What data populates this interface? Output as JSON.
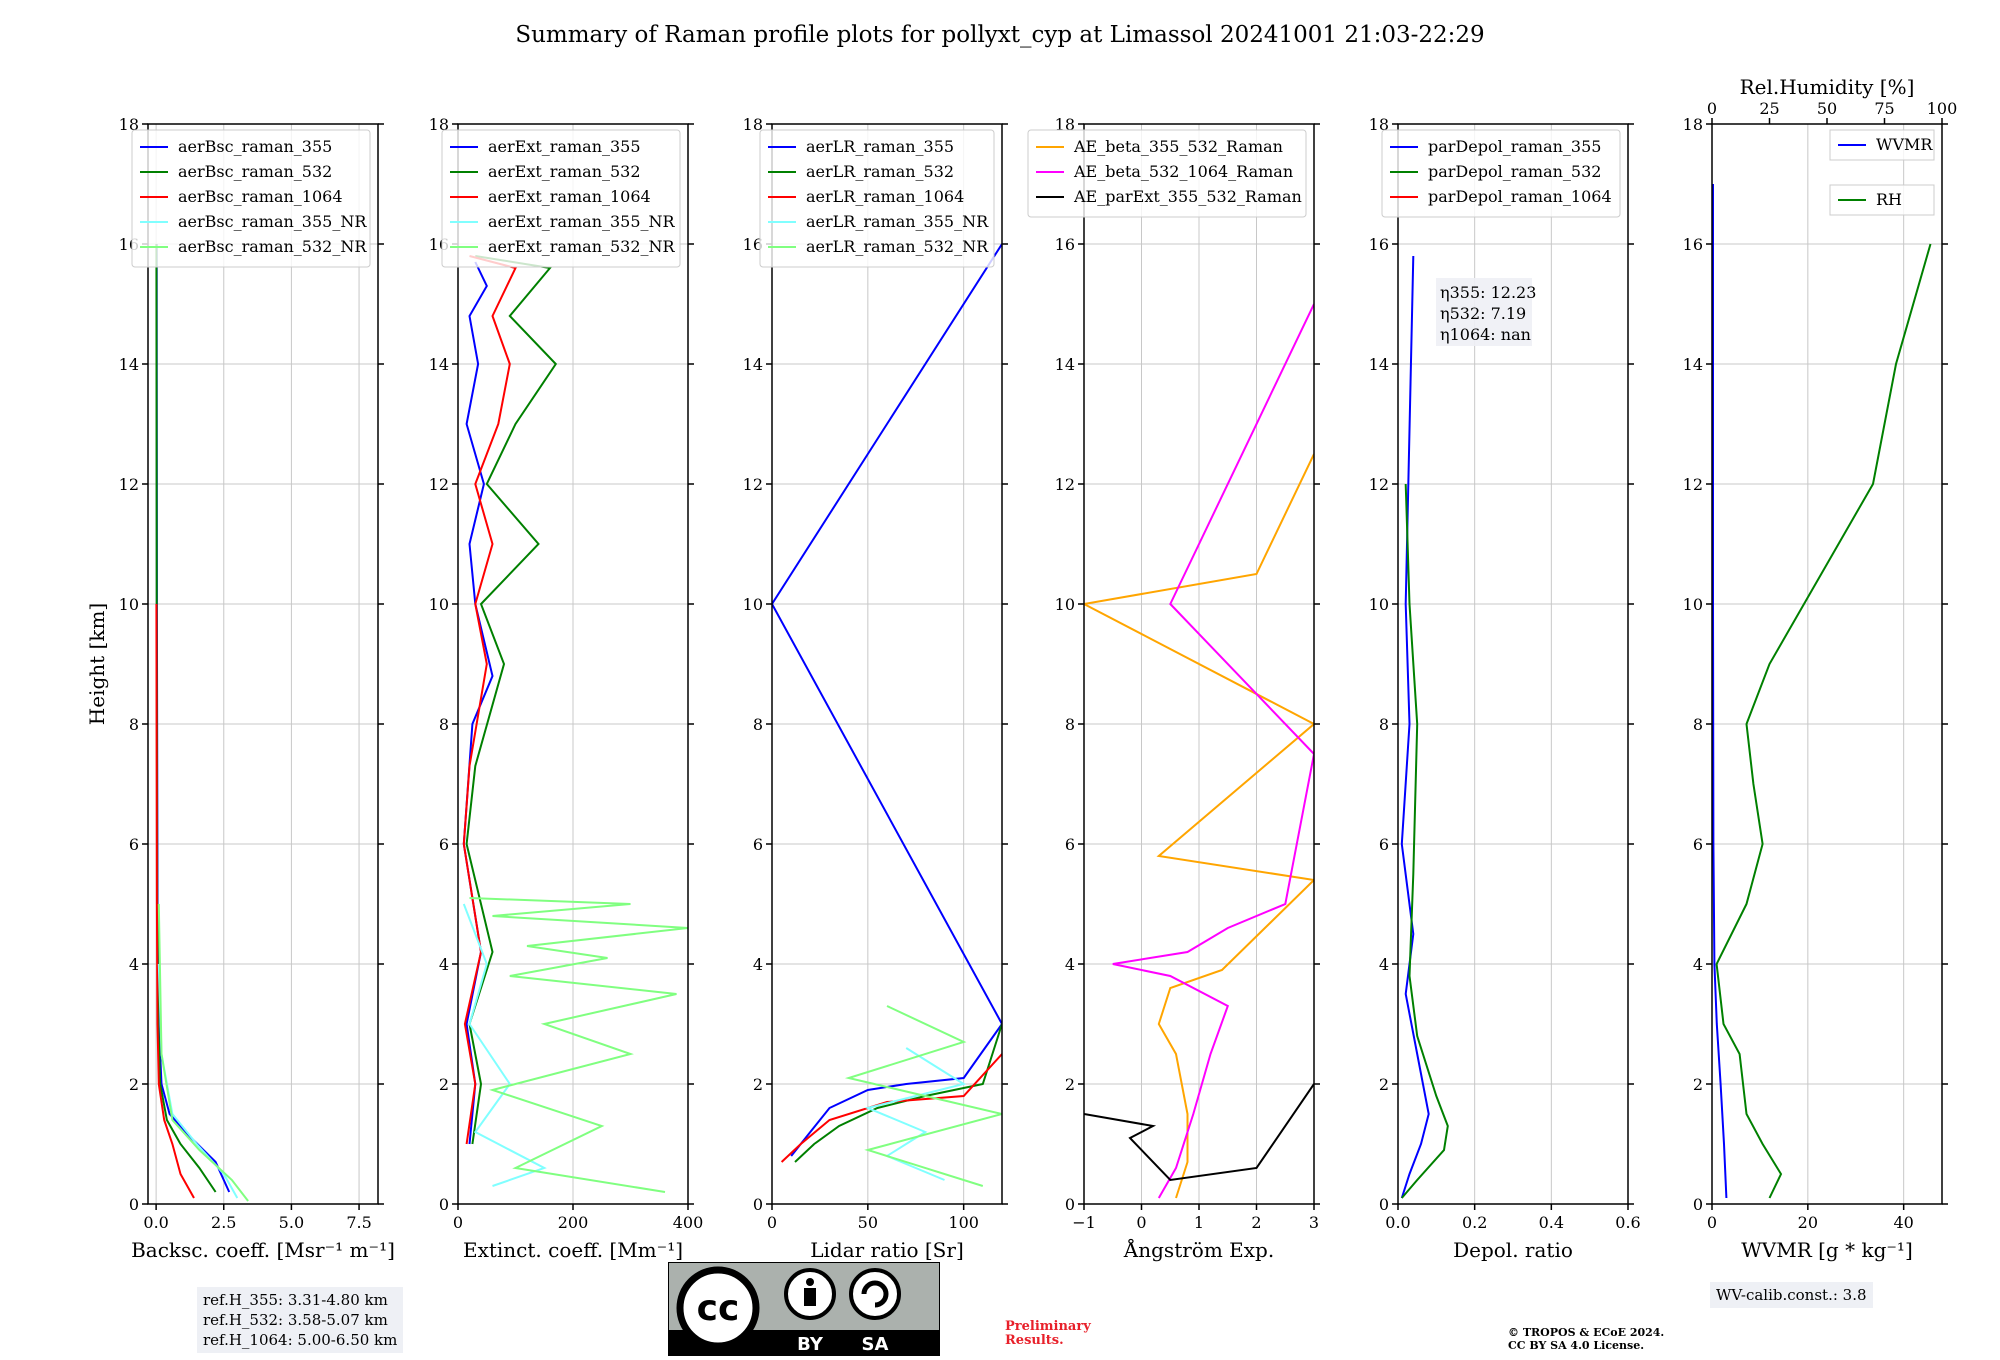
{
  "title": "Summary of Raman profile plots for pollyxt_cyp at Limassol 20241001 21:03-22:29",
  "ylabel": "Height [km]",
  "colors": {
    "c355": "#0000ff",
    "c532": "#008000",
    "c1064": "#ff0000",
    "c355nr": "#80ffff",
    "c532nr": "#80ff80",
    "orange": "#ffa500",
    "magenta": "#ff00ff",
    "black": "#000000"
  },
  "chart_data": [
    {
      "type": "line",
      "xlabel": "Backsc. coeff. [Msr⁻¹ m⁻¹]",
      "xlim": [
        -0.3,
        8.2
      ],
      "ylim": [
        0,
        18
      ],
      "xticks": [
        0.0,
        2.5,
        5.0,
        7.5
      ],
      "xticklabels": [
        "0.0",
        "2.5",
        "5.0",
        "7.5"
      ],
      "yticks": [
        0,
        2,
        4,
        6,
        8,
        10,
        12,
        14,
        16,
        18
      ],
      "legend": "top-right",
      "series": [
        {
          "name": "aerBsc_raman_355",
          "color": "#0000ff",
          "x": [
            2.7,
            2.2,
            1.3,
            0.5,
            0.2,
            0.1,
            0.05,
            0.03,
            0.02
          ],
          "y": [
            0.2,
            0.7,
            1.1,
            1.5,
            2.0,
            3.0,
            5.0,
            10.0,
            16.0
          ]
        },
        {
          "name": "aerBsc_raman_532",
          "color": "#008000",
          "x": [
            2.2,
            1.6,
            0.9,
            0.4,
            0.15,
            0.08,
            0.04,
            0.02,
            0.01
          ],
          "y": [
            0.2,
            0.6,
            1.0,
            1.4,
            2.0,
            3.0,
            5.0,
            10.0,
            16.0
          ]
        },
        {
          "name": "aerBsc_raman_1064",
          "color": "#ff0000",
          "x": [
            1.4,
            0.9,
            0.6,
            0.3,
            0.1,
            0.05,
            0.03,
            0.01
          ],
          "y": [
            0.1,
            0.5,
            1.0,
            1.4,
            2.0,
            3.0,
            5.0,
            10.0
          ]
        },
        {
          "name": "aerBsc_raman_355_NR",
          "color": "#80ffff",
          "x": [
            3.0,
            2.5,
            1.5,
            0.6,
            0.2,
            0.1
          ],
          "y": [
            0.1,
            0.5,
            1.0,
            1.5,
            2.5,
            4.0
          ]
        },
        {
          "name": "aerBsc_raman_532_NR",
          "color": "#80ff80",
          "x": [
            3.4,
            2.8,
            1.6,
            0.6,
            0.2,
            0.1
          ],
          "y": [
            0.05,
            0.4,
            0.9,
            1.4,
            2.5,
            5.0
          ]
        }
      ]
    },
    {
      "type": "line",
      "xlabel": "Extinct. coeff. [Mm⁻¹]",
      "xlim": [
        0,
        400
      ],
      "ylim": [
        0,
        18
      ],
      "xticks": [
        0,
        200,
        400
      ],
      "xticklabels": [
        "0",
        "200",
        "400"
      ],
      "yticks": [
        0,
        2,
        4,
        6,
        8,
        10,
        12,
        14,
        16,
        18
      ],
      "legend": "top-right",
      "series": [
        {
          "name": "aerExt_raman_355",
          "color": "#0000ff",
          "x": [
            20,
            30,
            15,
            40,
            10,
            25,
            60,
            30,
            20,
            45,
            15,
            35,
            20,
            50,
            30
          ],
          "y": [
            1.0,
            2.0,
            3.0,
            4.2,
            6.0,
            8.0,
            8.8,
            10.0,
            11.0,
            12.0,
            13.0,
            14.0,
            14.8,
            15.3,
            15.7
          ]
        },
        {
          "name": "aerExt_raman_532",
          "color": "#008000",
          "x": [
            25,
            40,
            20,
            60,
            15,
            30,
            80,
            40,
            140,
            50,
            100,
            170,
            90,
            160,
            30
          ],
          "y": [
            1.0,
            2.0,
            3.0,
            4.2,
            6.0,
            7.3,
            9.0,
            10.0,
            11.0,
            12.0,
            13.0,
            14.0,
            14.8,
            15.6,
            15.8
          ]
        },
        {
          "name": "aerExt_raman_1064",
          "color": "#ff0000",
          "x": [
            15,
            30,
            12,
            40,
            10,
            20,
            50,
            30,
            60,
            30,
            70,
            90,
            60,
            100,
            20
          ],
          "y": [
            1.0,
            2.0,
            3.0,
            4.2,
            6.0,
            7.3,
            9.0,
            10.0,
            11.0,
            12.0,
            13.0,
            14.0,
            14.8,
            15.6,
            15.8
          ]
        },
        {
          "name": "aerExt_raman_355_NR",
          "color": "#80ffff",
          "x": [
            60,
            150,
            30,
            90,
            20,
            50,
            10
          ],
          "y": [
            0.3,
            0.6,
            1.2,
            2.0,
            3.0,
            4.0,
            5.0
          ]
        },
        {
          "name": "aerExt_raman_532_NR",
          "color": "#80ff80",
          "x": [
            360,
            100,
            250,
            60,
            300,
            150,
            380,
            90,
            260,
            120,
            400,
            60,
            300,
            20
          ],
          "y": [
            0.2,
            0.6,
            1.3,
            1.9,
            2.5,
            3.0,
            3.5,
            3.8,
            4.1,
            4.3,
            4.6,
            4.8,
            5.0,
            5.1
          ]
        }
      ]
    },
    {
      "type": "line",
      "xlabel": "Lidar ratio [Sr]",
      "xlim": [
        0,
        120
      ],
      "ylim": [
        0,
        18
      ],
      "xticks": [
        0,
        50,
        100
      ],
      "xticklabels": [
        "0",
        "50",
        "100"
      ],
      "yticks": [
        0,
        2,
        4,
        6,
        8,
        10,
        12,
        14,
        16,
        18
      ],
      "legend": "top-right",
      "series": [
        {
          "name": "aerLR_raman_355",
          "color": "#0000ff",
          "x": [
            10,
            20,
            30,
            50,
            70,
            100,
            120,
            0,
            120
          ],
          "y": [
            0.8,
            1.2,
            1.6,
            1.9,
            2.0,
            2.1,
            3.0,
            10.0,
            16.0
          ]
        },
        {
          "name": "aerLR_raman_532",
          "color": "#008000",
          "x": [
            12,
            22,
            35,
            55,
            80,
            110,
            120
          ],
          "y": [
            0.7,
            1.0,
            1.3,
            1.6,
            1.8,
            2.0,
            3.0
          ]
        },
        {
          "name": "aerLR_raman_1064",
          "color": "#ff0000",
          "x": [
            5,
            15,
            30,
            60,
            100,
            120
          ],
          "y": [
            0.7,
            1.0,
            1.4,
            1.7,
            1.8,
            2.5
          ]
        },
        {
          "name": "aerLR_raman_355_NR",
          "color": "#80ffff",
          "x": [
            90,
            60,
            80,
            50,
            100,
            70
          ],
          "y": [
            0.4,
            0.8,
            1.2,
            1.6,
            2.0,
            2.6
          ]
        },
        {
          "name": "aerLR_raman_532_NR",
          "color": "#80ff80",
          "x": [
            110,
            50,
            120,
            40,
            100,
            60
          ],
          "y": [
            0.3,
            0.9,
            1.5,
            2.1,
            2.7,
            3.3
          ]
        }
      ]
    },
    {
      "type": "line",
      "xlabel": "Ångström Exp.",
      "xlim": [
        -1,
        3
      ],
      "ylim": [
        0,
        18
      ],
      "xticks": [
        -1,
        0,
        1,
        2,
        3
      ],
      "xticklabels": [
        "−1",
        "0",
        "1",
        "2",
        "3"
      ],
      "yticks": [
        0,
        2,
        4,
        6,
        8,
        10,
        12,
        14,
        16,
        18
      ],
      "legend": "top-right",
      "series": [
        {
          "name": "AE_beta_355_532_Raman",
          "color": "#ffa500",
          "x": [
            0.6,
            0.8,
            0.8,
            0.6,
            0.3,
            0.5,
            1.4,
            3.0,
            0.3,
            3.0,
            -1.0,
            2.0,
            3.0
          ],
          "y": [
            0.1,
            0.7,
            1.5,
            2.5,
            3.0,
            3.6,
            3.9,
            5.4,
            5.8,
            8.0,
            10.0,
            10.5,
            12.5
          ]
        },
        {
          "name": "AE_beta_532_1064_Raman",
          "color": "#ff00ff",
          "x": [
            0.3,
            0.6,
            0.9,
            1.2,
            1.5,
            0.5,
            -0.5,
            0.8,
            1.5,
            2.5,
            3.0,
            0.5,
            3.0
          ],
          "y": [
            0.1,
            0.6,
            1.5,
            2.5,
            3.3,
            3.8,
            4.0,
            4.2,
            4.6,
            5.0,
            7.5,
            10.0,
            15.0
          ]
        },
        {
          "name": "AE_parExt_355_532_Raman",
          "color": "#000000",
          "x": [
            -1.0,
            0.2,
            -0.2,
            0.5,
            2.0,
            3.0
          ],
          "y": [
            1.5,
            1.3,
            1.1,
            0.4,
            0.6,
            2.0
          ]
        }
      ]
    },
    {
      "type": "line",
      "xlabel": "Depol. ratio",
      "xlim": [
        0,
        0.6
      ],
      "ylim": [
        0,
        18
      ],
      "xticks": [
        0.0,
        0.2,
        0.4,
        0.6
      ],
      "xticklabels": [
        "0.0",
        "0.2",
        "0.4",
        "0.6"
      ],
      "yticks": [
        0,
        2,
        4,
        6,
        8,
        10,
        12,
        14,
        16,
        18
      ],
      "legend": "top-right",
      "series": [
        {
          "name": "parDepol_raman_355",
          "color": "#0000ff",
          "x": [
            0.01,
            0.03,
            0.06,
            0.08,
            0.05,
            0.02,
            0.04,
            0.01,
            0.03,
            0.02,
            0.04
          ],
          "y": [
            0.1,
            0.5,
            1.0,
            1.5,
            2.5,
            3.5,
            4.5,
            6.0,
            8.0,
            10.0,
            15.8
          ]
        },
        {
          "name": "parDepol_raman_532",
          "color": "#008000",
          "x": [
            0.01,
            0.05,
            0.12,
            0.13,
            0.1,
            0.05,
            0.03,
            0.04,
            0.05,
            0.03,
            0.02
          ],
          "y": [
            0.1,
            0.4,
            0.9,
            1.3,
            1.8,
            2.8,
            3.8,
            5.5,
            8.0,
            10.0,
            12.0
          ]
        },
        {
          "name": "parDepol_raman_1064",
          "color": "#ff0000",
          "x": [],
          "y": []
        }
      ],
      "annotations": [
        {
          "label": "η355",
          "value": ": 12.23"
        },
        {
          "label": "η532",
          "value": ": 7.19"
        },
        {
          "label": "η1064",
          "value": ": nan"
        }
      ]
    },
    {
      "type": "line",
      "xlabel": "WVMR [g * kg⁻¹]",
      "xlim": [
        0,
        48
      ],
      "ylim": [
        0,
        18
      ],
      "xticks": [
        0,
        20,
        40
      ],
      "xticklabels": [
        "0",
        "20",
        "40"
      ],
      "x2label": "Rel.Humidity [%]",
      "x2lim": [
        0,
        100
      ],
      "x2ticks": [
        0,
        25,
        50,
        75,
        100
      ],
      "x2ticklabels": [
        "0",
        "25",
        "50",
        "75",
        "100"
      ],
      "yticks": [
        0,
        2,
        4,
        6,
        8,
        10,
        12,
        14,
        16,
        18
      ],
      "legend": "top-right",
      "series": [
        {
          "name": "WVMR",
          "color": "#0000ff",
          "axis": "x",
          "x": [
            3.0,
            2.5,
            1.8,
            1.0,
            0.5,
            0.3,
            0.2,
            0.2
          ],
          "y": [
            0.1,
            1.0,
            2.0,
            3.0,
            4.0,
            6.0,
            10.0,
            17.0
          ]
        },
        {
          "name": "RH",
          "color": "#008000",
          "axis": "x2",
          "x": [
            25,
            30,
            22,
            15,
            12,
            5,
            2,
            15,
            22,
            18,
            15,
            25,
            40,
            55,
            70,
            80,
            95
          ],
          "y": [
            0.1,
            0.5,
            1.0,
            1.5,
            2.5,
            3.0,
            4.0,
            5.0,
            6.0,
            7.0,
            8.0,
            9.0,
            10.0,
            11.0,
            12.0,
            14.0,
            16.0
          ]
        }
      ]
    }
  ],
  "info": {
    "refh_355": "ref.H_355: 3.31-4.80 km",
    "refh_532": "ref.H_532: 3.58-5.07 km",
    "refh_1064": "ref.H_1064: 5.00-6.50 km",
    "wv_calib": "WV-calib.const.: 3.8",
    "preliminary_1": "Preliminary",
    "preliminary_2": "Results.",
    "copyright_1": "© TROPOS & ECoE 2024.",
    "copyright_2": "CC BY SA 4.0 License.",
    "cc_by": "BY",
    "cc_sa": "SA",
    "cc_main": "cc"
  }
}
